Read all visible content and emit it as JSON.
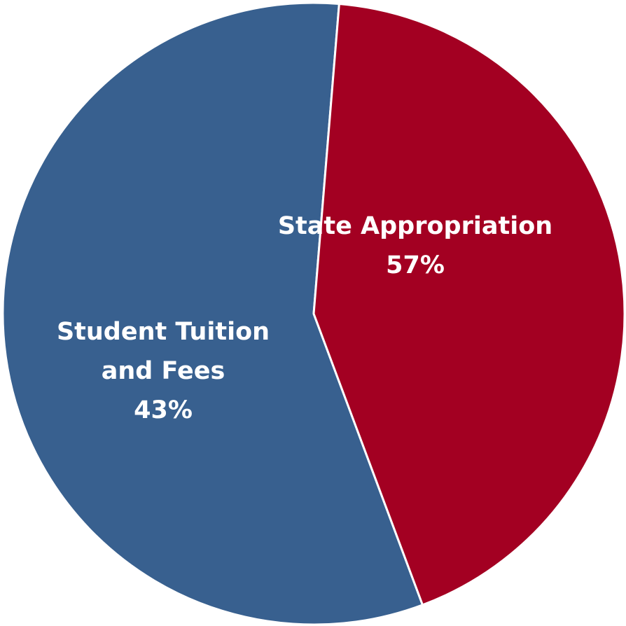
{
  "chart_data": {
    "type": "pie",
    "slices": [
      {
        "label_lines": [
          "State Appropriation"
        ],
        "value": 57,
        "value_label": "57%",
        "color": "#38608F"
      },
      {
        "label_lines": [
          "Student Tuition",
          "and Fees"
        ],
        "value": 43,
        "value_label": "43%",
        "color": "#A30022"
      }
    ]
  }
}
